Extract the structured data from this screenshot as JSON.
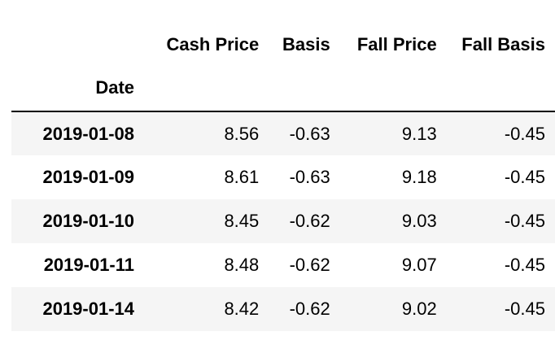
{
  "table": {
    "index_name": "Date",
    "columns": [
      "Cash Price",
      "Basis",
      "Fall Price",
      "Fall Basis"
    ],
    "rows": [
      {
        "date": "2019-01-08",
        "values": [
          "8.56",
          "-0.63",
          "9.13",
          "-0.45"
        ]
      },
      {
        "date": "2019-01-09",
        "values": [
          "8.61",
          "-0.63",
          "9.18",
          "-0.45"
        ]
      },
      {
        "date": "2019-01-10",
        "values": [
          "8.45",
          "-0.62",
          "9.03",
          "-0.45"
        ]
      },
      {
        "date": "2019-01-11",
        "values": [
          "8.48",
          "-0.62",
          "9.07",
          "-0.45"
        ]
      },
      {
        "date": "2019-01-14",
        "values": [
          "8.42",
          "-0.62",
          "9.02",
          "-0.45"
        ]
      }
    ]
  }
}
